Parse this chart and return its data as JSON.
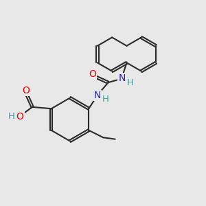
{
  "bg": "#e8e8e8",
  "bond_color": "#2a2a2a",
  "bond_lw": 1.5,
  "dbo": 0.055,
  "colors": {
    "O": "#ee0000",
    "N": "#2222cc",
    "H": "#3d9e9e",
    "C": "#2a2a2a"
  }
}
